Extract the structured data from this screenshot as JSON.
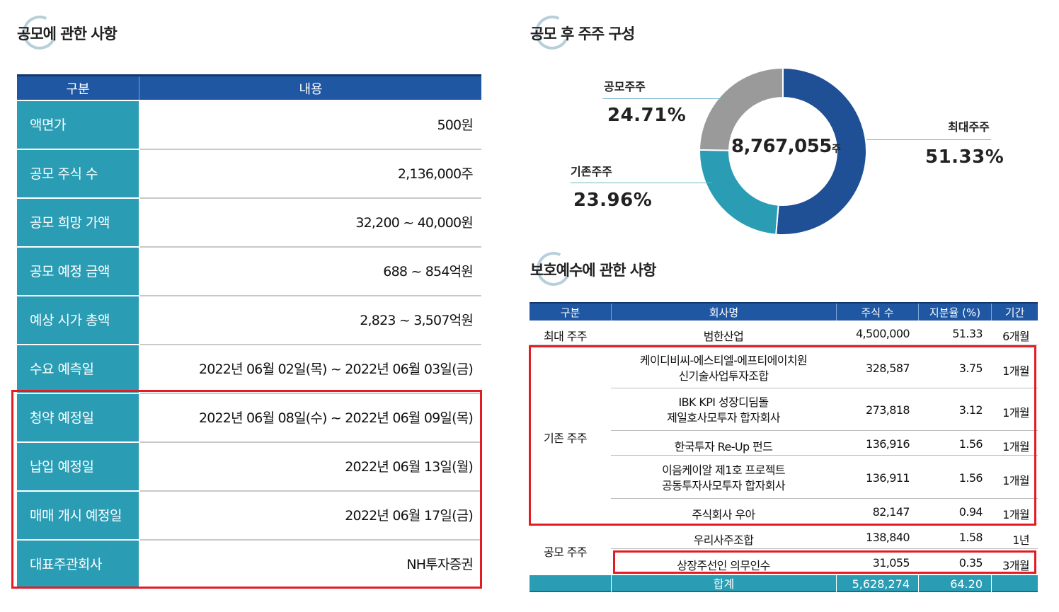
{
  "left_section": {
    "title": "공모에 관한 사항",
    "header": [
      "구분",
      "내용"
    ],
    "rows": [
      {
        "label": "액면가",
        "value": "500원"
      },
      {
        "label": "공모 주식 수",
        "value": "2,136,000주"
      },
      {
        "label": "공모 희망 가액",
        "value": "32,200 ~ 40,000원"
      },
      {
        "label": "공모 예정 금액",
        "value": "688 ~ 854억원"
      },
      {
        "label": "예상 시가 총액",
        "value": "2,823 ~ 3,507억원"
      },
      {
        "label": "수요 예측일",
        "value": "2022년 06월 02일(목) ~ 2022년 06월 03일(금)"
      },
      {
        "label": "청약 예정일",
        "value": "2022년 06월 08일(수) ~ 2022년 06월 09일(목)"
      },
      {
        "label": "납입 예정일",
        "value": "2022년 06월 13일(월)"
      },
      {
        "label": "매매 개시 예정일",
        "value": "2022년 06월 17일(금)"
      },
      {
        "label": "대표주관회사",
        "value": "NH투자증권"
      }
    ]
  },
  "shareholder_section": {
    "title": "공모 후 주주 구성",
    "center_value": "8,767,055",
    "center_unit": "주",
    "segments": [
      {
        "label": "최대주주",
        "pct": "51.33%",
        "value": 51.33,
        "color": "#1f4f94"
      },
      {
        "label": "기존주주",
        "pct": "23.96%",
        "value": 23.96,
        "color": "#2a9db5"
      },
      {
        "label": "공모주주",
        "pct": "24.71%",
        "value": 24.71,
        "color": "#9a9a9a"
      }
    ]
  },
  "lockup_section": {
    "title": "보호예수에 관한 사항",
    "header": [
      "구분",
      "회사명",
      "주식 수",
      "지분율 (%)",
      "기간"
    ],
    "groups": {
      "max": "최대 주주",
      "existing": "기존 주주",
      "public": "공모 주주"
    },
    "rows": [
      {
        "company": "범한산업",
        "shares": "4,500,000",
        "ratio": "51.33",
        "period": "6개월"
      },
      {
        "company": "케이디비씨-에스티엘-에프티에이치원",
        "company2": "신기술사업투자조합",
        "shares": "328,587",
        "ratio": "3.75",
        "period": "1개월"
      },
      {
        "company": "IBK KPI 성장디딤돌",
        "company2": "제일호사모투자 합자회사",
        "shares": "273,818",
        "ratio": "3.12",
        "period": "1개월"
      },
      {
        "company": "한국투자 Re-Up 펀드",
        "shares": "136,916",
        "ratio": "1.56",
        "period": "1개월"
      },
      {
        "company": "이음케이알 제1호 프로젝트",
        "company2": "공동투자사모투자 합자회사",
        "shares": "136,911",
        "ratio": "1.56",
        "period": "1개월"
      },
      {
        "company": "주식회사 우아",
        "shares": "82,147",
        "ratio": "0.94",
        "period": "1개월"
      },
      {
        "company": "우리사주조합",
        "shares": "138,840",
        "ratio": "1.58",
        "period": "1년"
      },
      {
        "company": "상장주선인 의무인수",
        "shares": "31,055",
        "ratio": "0.35",
        "period": "3개월"
      }
    ],
    "total": {
      "label": "합계",
      "shares": "5,628,274",
      "ratio": "64.20"
    }
  }
}
